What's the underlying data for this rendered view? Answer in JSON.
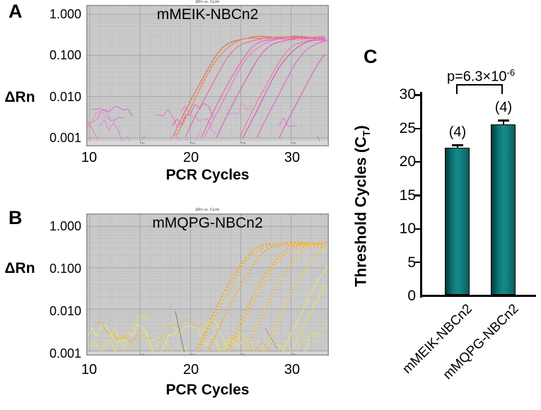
{
  "chart_data": [
    {
      "id": "A",
      "type": "line",
      "panel_label": "A",
      "title": "mMEIK-NBCn2",
      "mini_title": "ΔRn vs. Cycle",
      "xlabel": "PCR Cycles",
      "ylabel": "ΔRn",
      "y_scale": "log",
      "y_tick_labels": [
        "1.000",
        "0.100",
        "0.010",
        "0.001"
      ],
      "y_range": [
        0.001,
        1.0
      ],
      "x_tick_labels": [
        "10",
        "20",
        "30"
      ],
      "x_range": [
        9.8,
        33.6
      ],
      "plot_bg": "#cacaca",
      "grid": true,
      "curves": [
        {
          "ct": 18.4,
          "plateau": 0.28,
          "color": "#e2574e",
          "dash": "#f09a55"
        },
        {
          "ct": 18.7,
          "plateau": 0.27,
          "color": "#ea6a55",
          "dash": "#f2a860"
        },
        {
          "ct": 19.6,
          "plateau": 0.26,
          "color": "#ec6f93"
        },
        {
          "ct": 21.2,
          "plateau": 0.27,
          "color": "#e868b8"
        },
        {
          "ct": 21.5,
          "plateau": 0.25,
          "color": "#ee7ac4"
        },
        {
          "ct": 22.7,
          "plateau": 0.26,
          "color": "#e160bc"
        },
        {
          "ct": 25.0,
          "plateau": 0.26,
          "color": "#e36cc3",
          "dash": "#f0a860"
        },
        {
          "ct": 25.3,
          "plateau": 0.24,
          "color": "#d957c0"
        },
        {
          "ct": 26.7,
          "plateau": 0.25,
          "color": "#e26bc8"
        },
        {
          "ct": 28.9,
          "plateau": 0.24,
          "color": "#dd63c6"
        }
      ],
      "noise_traces": [
        {
          "x0": 9.8,
          "x1": 13.8,
          "color": "#e768cd"
        },
        {
          "x0": 9.8,
          "x1": 12.6,
          "color": "#ef82d8"
        },
        {
          "x0": 10.2,
          "x1": 14.6,
          "color": "#da58c4"
        },
        {
          "x0": 9.8,
          "x1": 12.2,
          "color": "#e8807e"
        },
        {
          "x0": 11.0,
          "x1": 15.6,
          "color": "#ee74d2"
        },
        {
          "x0": 16.4,
          "x1": 19.6,
          "color": "#e768cd"
        },
        {
          "x0": 17.4,
          "x1": 21.2,
          "color": "#ef82d8"
        },
        {
          "x0": 18.2,
          "x1": 22.4,
          "color": "#da58c4"
        },
        {
          "x0": 19.0,
          "x1": 22.8,
          "color": "#ee74d2"
        },
        {
          "x0": 23.8,
          "x1": 26.2,
          "color": "#e88ad6"
        },
        {
          "x0": 28.8,
          "x1": 31.0,
          "color": "#e768cd"
        },
        {
          "x0": 32.6,
          "x1": 33.6,
          "color": "#da58c4"
        }
      ]
    },
    {
      "id": "B",
      "type": "line",
      "panel_label": "B",
      "title": "mMQPG-NBCn2",
      "mini_title": "ΔRn vs. Cycle",
      "xlabel": "PCR Cycles",
      "ylabel": "ΔRn",
      "y_scale": "log",
      "y_tick_labels": [
        "1.000",
        "0.100",
        "0.010",
        "0.001"
      ],
      "y_range": [
        0.001,
        1.0
      ],
      "x_tick_labels": [
        "10",
        "20",
        "30"
      ],
      "x_range": [
        9.8,
        33.6
      ],
      "plot_bg": "#cacaca",
      "grid": true,
      "curves": [
        {
          "ct": 21.0,
          "plateau": 0.4,
          "color": "#ec8c38",
          "dash": "#eee45c"
        },
        {
          "ct": 21.3,
          "plateau": 0.38,
          "color": "#f09d44",
          "dash": "#f0ec62"
        },
        {
          "ct": 22.2,
          "plateau": 0.38,
          "color": "#ee9340",
          "dash": "#eee45c"
        },
        {
          "ct": 24.0,
          "plateau": 0.37,
          "color": "#ef9a40",
          "dash": "#efe75e"
        },
        {
          "ct": 24.3,
          "plateau": 0.35,
          "color": "#f0a648",
          "dash": "#f0ec66"
        },
        {
          "ct": 25.8,
          "plateau": 0.35,
          "color": "#eead4c",
          "dash": "#eee95e"
        },
        {
          "ct": 27.6,
          "plateau": 0.34,
          "color": "#ecc052",
          "dash": "#ece45a"
        },
        {
          "ct": 29.5,
          "plateau": 0.33,
          "color": "#e8dc58",
          "dash": "#f0ee6a"
        },
        {
          "ct": 30.3,
          "plateau": 0.3,
          "color": "#e6e25c"
        }
      ],
      "noise_traces": [
        {
          "x0": 9.8,
          "x1": 14.2,
          "color": "#e8e455"
        },
        {
          "x0": 9.8,
          "x1": 13.2,
          "color": "#f0ee66"
        },
        {
          "x0": 10.4,
          "x1": 15.2,
          "color": "#efa844"
        },
        {
          "x0": 11.2,
          "x1": 16.4,
          "color": "#e8e455"
        },
        {
          "x0": 12.4,
          "x1": 17.2,
          "color": "#e9cf55"
        },
        {
          "x0": 13.8,
          "x1": 19.0,
          "color": "#f0ee66"
        },
        {
          "x0": 15.0,
          "x1": 20.2,
          "color": "#e8e455"
        },
        {
          "x0": 16.8,
          "x1": 21.6,
          "color": "#efb54c"
        },
        {
          "x0": 18.0,
          "x1": 23.2,
          "color": "#eee860"
        },
        {
          "x0": 19.8,
          "x1": 24.4,
          "color": "#e8e455"
        },
        {
          "x0": 21.0,
          "x1": 25.2,
          "color": "#f0ee66"
        },
        {
          "x0": 22.8,
          "x1": 27.2,
          "color": "#e9cf55"
        },
        {
          "x0": 24.6,
          "x1": 29.0,
          "color": "#e8e455"
        },
        {
          "x0": 26.2,
          "x1": 30.2,
          "color": "#efae48"
        },
        {
          "x0": 27.8,
          "x1": 32.0,
          "color": "#eee860"
        },
        {
          "x0": 29.8,
          "x1": 33.4,
          "color": "#e8e455"
        },
        {
          "x0": 18.5,
          "x1": 19.4,
          "y0": -2.05,
          "y1": -3.05,
          "color": "#707070"
        },
        {
          "x0": 27.4,
          "x1": 28.6,
          "y0": -2.45,
          "y1": -2.95,
          "color": "#8a8a8a"
        }
      ]
    },
    {
      "id": "C",
      "type": "bar",
      "panel_label": "C",
      "ylabel_parts": [
        "Threshold Cycles (C",
        "T",
        ")"
      ],
      "categories": [
        "mMEIK-NBCn2",
        "mMQPG-NBCn2"
      ],
      "values": [
        22.0,
        25.4
      ],
      "errors": [
        0.2,
        0.5
      ],
      "n_labels": [
        "(4)",
        "(4)"
      ],
      "p_label_base": "p=6.3×10",
      "p_label_exp": "-6",
      "y_ticks_desc": [
        "30",
        "25",
        "20",
        "15",
        "10",
        "5",
        "0"
      ],
      "y_ticks": [
        0,
        5,
        10,
        15,
        20,
        25,
        30
      ],
      "ylim": [
        0,
        30
      ],
      "bar_color": "#107c7c",
      "bar_edge_color": "#000000",
      "legend": false
    }
  ]
}
